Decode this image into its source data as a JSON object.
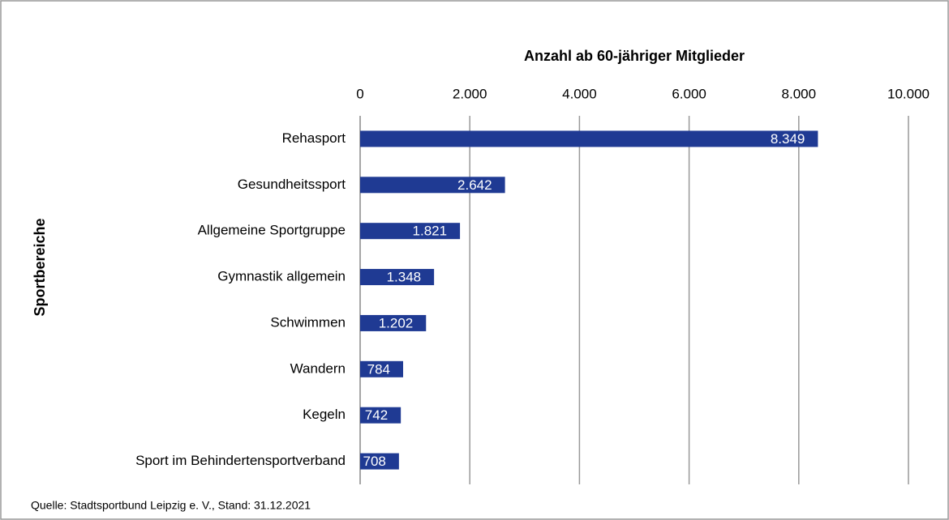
{
  "chart_data": {
    "type": "bar",
    "orientation": "horizontal",
    "title": "Anzahl ab 60-jähriger Mitglieder",
    "y_label": "Sportbereiche",
    "source": "Quelle: Stadtsportbund Leipzig e. V., Stand: 31.12.2021",
    "categories": [
      "Rehasport",
      "Gesundheitssport",
      "Allgemeine Sportgruppe",
      "Gymnastik allgemein",
      "Schwimmen",
      "Wandern",
      "Kegeln",
      "Sport im Behindertensportverband"
    ],
    "values": [
      8349,
      2642,
      1821,
      1348,
      1202,
      784,
      742,
      708
    ],
    "value_labels": [
      "8.349",
      "2.642",
      "1.821",
      "1.348",
      "1.202",
      "784",
      "742",
      "708"
    ],
    "color": "#1f3a93",
    "xlim": [
      0,
      10000
    ],
    "xticks": [
      0,
      {
        "value": 2000,
        "label": "2.000"
      },
      {
        "value": 4000,
        "label": "4.000"
      },
      {
        "value": 6000,
        "label": "6.000"
      },
      {
        "value": 8000,
        "label": "8.000"
      },
      {
        "value": 10000,
        "label": "10.000"
      }
    ],
    "grid": true
  }
}
